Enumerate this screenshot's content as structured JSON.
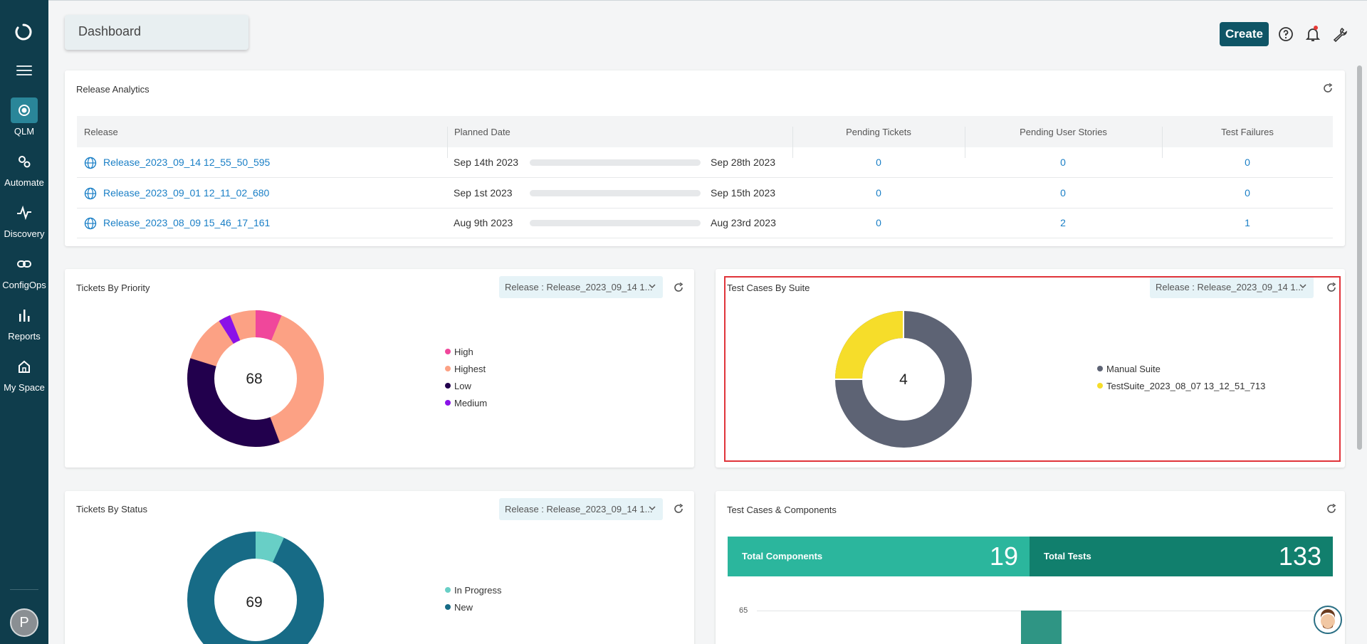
{
  "sidebar": {
    "items": [
      {
        "label": "QLM",
        "icon": "qlm-icon",
        "active": true
      },
      {
        "label": "Automate",
        "icon": "automate-gear-icon"
      },
      {
        "label": "Discovery",
        "icon": "pulse-icon"
      },
      {
        "label": "ConfigOps",
        "icon": "link-icon"
      },
      {
        "label": "Reports",
        "icon": "bar-chart-icon"
      },
      {
        "label": "My Space",
        "icon": "home-icon"
      }
    ],
    "avatar_initial": "P"
  },
  "header": {
    "title": "Dashboard",
    "create_label": "Create"
  },
  "release_analytics": {
    "title": "Release Analytics",
    "columns": [
      "Release",
      "Planned Date",
      "Pending Tickets",
      "Pending User Stories",
      "Test Failures"
    ],
    "rows": [
      {
        "release": "Release_2023_09_14 12_55_50_595",
        "start": "Sep 14th 2023",
        "end": "Sep 28th 2023",
        "tickets": "0",
        "stories": "0",
        "failures": "0"
      },
      {
        "release": "Release_2023_09_01 12_11_02_680",
        "start": "Sep 1st 2023",
        "end": "Sep 15th 2023",
        "tickets": "0",
        "stories": "0",
        "failures": "0"
      },
      {
        "release": "Release_2023_08_09 15_46_17_161",
        "start": "Aug 9th 2023",
        "end": "Aug 23rd 2023",
        "tickets": "0",
        "stories": "2",
        "failures": "1"
      }
    ]
  },
  "tickets_by_priority": {
    "title": "Tickets By Priority",
    "release_label": "Release :",
    "release_value": "Release_2023_09_14 1...",
    "total": "68",
    "legend": [
      {
        "name": "High",
        "color": "#f0479b"
      },
      {
        "name": "Highest",
        "color": "#fca184"
      },
      {
        "name": "Low",
        "color": "#22004d"
      },
      {
        "name": "Medium",
        "color": "#8a12e8"
      }
    ]
  },
  "test_cases_by_suite": {
    "title": "Test Cases By Suite",
    "release_label": "Release :",
    "release_value": "Release_2023_09_14 1...",
    "total": "4",
    "legend": [
      {
        "name": "Manual Suite",
        "color": "#5d6374"
      },
      {
        "name": "TestSuite_2023_08_07 13_12_51_713",
        "color": "#f6dd2a"
      }
    ]
  },
  "tickets_by_status": {
    "title": "Tickets By Status",
    "release_label": "Release :",
    "release_value": "Release_2023_09_14 1...",
    "total": "69",
    "legend": [
      {
        "name": "In Progress",
        "color": "#68cfc6"
      },
      {
        "name": "New",
        "color": "#176b86"
      }
    ]
  },
  "test_cases_components": {
    "title": "Test Cases & Components",
    "total_components_label": "Total Components",
    "total_components": "19",
    "total_tests_label": "Total Tests",
    "total_tests": "133",
    "axis_tick": "65"
  }
}
